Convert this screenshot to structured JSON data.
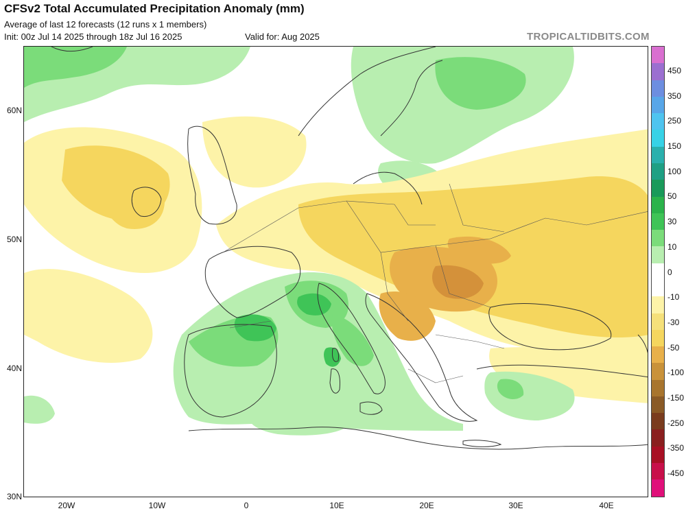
{
  "header": {
    "title": "CFSv2 Total Accumulated Precipitation Anomaly (mm)",
    "subtitle": "Average of last 12 forecasts (12 runs x 1 members)",
    "init": "Init: 00z Jul 14 2025 through 18z Jul 16 2025",
    "valid": "Valid for: Aug 2025",
    "site": "TROPICALTIDBITS.COM"
  },
  "map": {
    "region": "Europe",
    "lat_labels": [
      "60N",
      "50N",
      "40N",
      "30N"
    ],
    "lon_labels": [
      "20W",
      "10W",
      "0",
      "10E",
      "20E",
      "30E",
      "40E"
    ],
    "colors": {
      "dry_light": "#fdf3a8",
      "dry_mid": "#f5d65e",
      "dry_strong": "#e8b04a",
      "dry_deep": "#d4913a",
      "wet_light": "#b8eeb0",
      "wet_mid": "#7bdc7a",
      "wet_strong": "#3fc457",
      "wet_deep": "#22a84a",
      "border": "#333333"
    }
  },
  "colorbar": {
    "labels": [
      "450",
      "350",
      "250",
      "150",
      "100",
      "50",
      "30",
      "10",
      "0",
      "-10",
      "-30",
      "-50",
      "-100",
      "-150",
      "-250",
      "-350",
      "-450"
    ],
    "colors": [
      "#d96fd0",
      "#9b6fd0",
      "#6d8ee0",
      "#58a6e8",
      "#4fc4ef",
      "#37d2e6",
      "#2ab0ad",
      "#1fa084",
      "#1a9a5a",
      "#2bb34b",
      "#3fc457",
      "#7bdc7a",
      "#b8eeb0",
      "#ffffff",
      "#ffffff",
      "#fdf3a8",
      "#f5e07a",
      "#f5d65e",
      "#e8b04a",
      "#c9923a",
      "#a8752e",
      "#8a5a26",
      "#7a3c1e",
      "#8a1f1f",
      "#a81024",
      "#c8104a",
      "#e0107a"
    ]
  }
}
